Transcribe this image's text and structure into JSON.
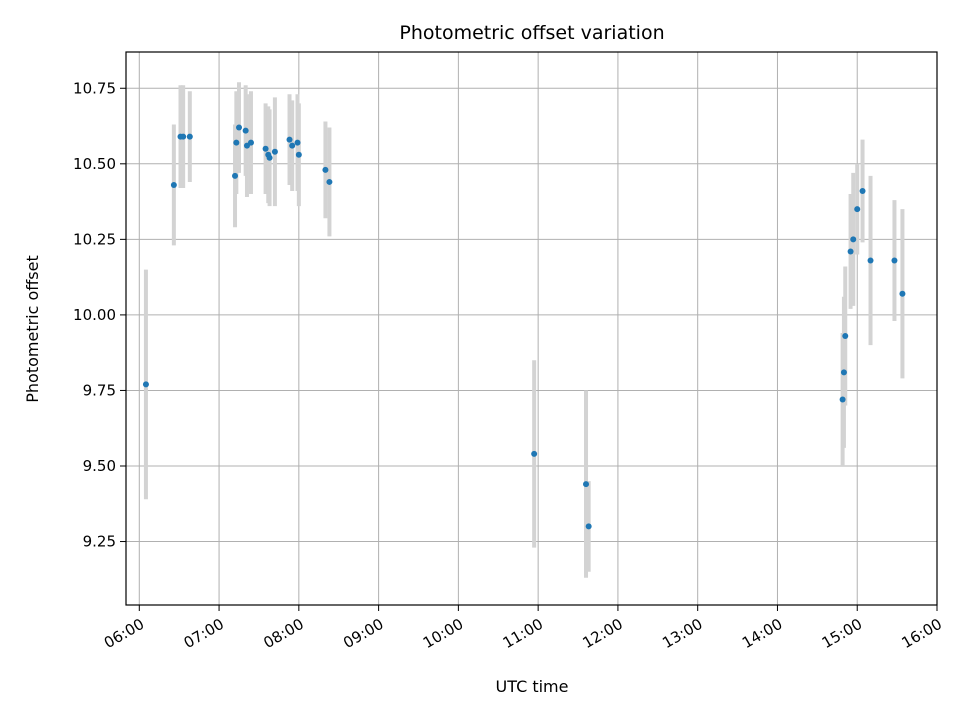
{
  "chart_data": {
    "type": "scatter",
    "title": "Photometric offset variation",
    "xlabel": "UTC time",
    "ylabel": "Photometric offset",
    "x_type": "time",
    "xlim": [
      "05:50",
      "16:00"
    ],
    "ylim": [
      9.04,
      10.87
    ],
    "x_ticks": [
      "06:00",
      "07:00",
      "08:00",
      "09:00",
      "10:00",
      "11:00",
      "12:00",
      "13:00",
      "14:00",
      "15:00",
      "16:00"
    ],
    "y_ticks": [
      9.25,
      9.5,
      9.75,
      10.0,
      10.25,
      10.5,
      10.75
    ],
    "y_tick_labels": [
      "9.25",
      "9.50",
      "9.75",
      "10.00",
      "10.25",
      "10.50",
      "10.75"
    ],
    "grid": true,
    "colors": {
      "point": "#1f77b4",
      "errorbar": "#d3d3d3",
      "grid": "#b0b0b0"
    },
    "series": [
      {
        "points": [
          {
            "x": "06:05",
            "y": 9.77,
            "yerr": 0.38
          },
          {
            "x": "06:26",
            "y": 10.43,
            "yerr": 0.2
          },
          {
            "x": "06:31",
            "y": 10.59,
            "yerr": 0.17
          },
          {
            "x": "06:33",
            "y": 10.59,
            "yerr": 0.17
          },
          {
            "x": "06:38",
            "y": 10.59,
            "yerr": 0.15
          },
          {
            "x": "07:12",
            "y": 10.46,
            "yerr": 0.17
          },
          {
            "x": "07:13",
            "y": 10.57,
            "yerr": 0.17
          },
          {
            "x": "07:15",
            "y": 10.62,
            "yerr": 0.15
          },
          {
            "x": "07:20",
            "y": 10.61,
            "yerr": 0.15
          },
          {
            "x": "07:21",
            "y": 10.56,
            "yerr": 0.17
          },
          {
            "x": "07:24",
            "y": 10.57,
            "yerr": 0.17
          },
          {
            "x": "07:35",
            "y": 10.55,
            "yerr": 0.15
          },
          {
            "x": "07:37",
            "y": 10.53,
            "yerr": 0.16
          },
          {
            "x": "07:38",
            "y": 10.52,
            "yerr": 0.16
          },
          {
            "x": "07:42",
            "y": 10.54,
            "yerr": 0.18
          },
          {
            "x": "07:53",
            "y": 10.58,
            "yerr": 0.15
          },
          {
            "x": "07:55",
            "y": 10.56,
            "yerr": 0.15
          },
          {
            "x": "07:59",
            "y": 10.57,
            "yerr": 0.16
          },
          {
            "x": "08:00",
            "y": 10.53,
            "yerr": 0.17
          },
          {
            "x": "08:20",
            "y": 10.48,
            "yerr": 0.16
          },
          {
            "x": "08:23",
            "y": 10.44,
            "yerr": 0.18
          },
          {
            "x": "10:57",
            "y": 9.54,
            "yerr": 0.31
          },
          {
            "x": "11:36",
            "y": 9.44,
            "yerr": 0.31
          },
          {
            "x": "11:38",
            "y": 9.3,
            "yerr": 0.15
          },
          {
            "x": "14:49",
            "y": 9.72,
            "yerr": 0.22
          },
          {
            "x": "14:50",
            "y": 9.81,
            "yerr": 0.25
          },
          {
            "x": "14:51",
            "y": 9.93,
            "yerr": 0.23
          },
          {
            "x": "14:55",
            "y": 10.21,
            "yerr": 0.19
          },
          {
            "x": "14:57",
            "y": 10.25,
            "yerr": 0.22
          },
          {
            "x": "15:00",
            "y": 10.35,
            "yerr": 0.15
          },
          {
            "x": "15:04",
            "y": 10.41,
            "yerr": 0.17
          },
          {
            "x": "15:10",
            "y": 10.18,
            "yerr": 0.28
          },
          {
            "x": "15:28",
            "y": 10.18,
            "yerr": 0.2
          },
          {
            "x": "15:34",
            "y": 10.07,
            "yerr": 0.28
          }
        ]
      }
    ]
  }
}
